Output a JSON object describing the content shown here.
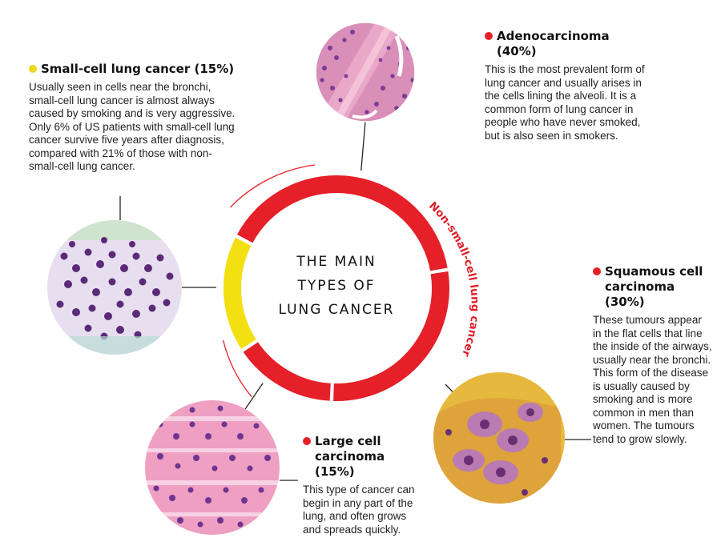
{
  "title_lines": [
    "THE MAIN",
    "TYPES OF",
    "LUNG CANCER"
  ],
  "arc_label": "Non-small-cell lung cancer",
  "colors": {
    "red": "#e52028",
    "yellow": "#f2e012",
    "small_cell_dot": "#ecd81a",
    "nsclc_dot": "#e52028"
  },
  "cancers": {
    "small_cell": {
      "heading": "Small-cell lung cancer (15%)",
      "body": "Usually seen in cells near the bronchi, small-cell lung cancer is almost always caused by smoking and is very aggressive. Only 6% of US patients with small-cell lung cancer survive five years after diagnosis, compared with 21% of those with non-small-cell lung cancer."
    },
    "adenocarcinoma": {
      "heading": "Adenocarcinoma (40%)",
      "body": "This is the most prevalent form of lung cancer and usually arises in the cells lining the alveoli. It is a common form of lung cancer in people who have never smoked, but is also seen in smokers."
    },
    "squamous": {
      "heading": "Squamous cell carcinoma (30%)",
      "body": "These tumours appear in the flat cells that line the inside of the airways, usually near the bronchi. This form of the disease is usually caused by smoking and is more common in men than women. The tumours tend to grow slowly."
    },
    "large_cell": {
      "heading": "Large cell carcinoma (15%)",
      "body": "This type of cancer can begin in any part of the lung, and often grows and spreads quickly."
    }
  }
}
